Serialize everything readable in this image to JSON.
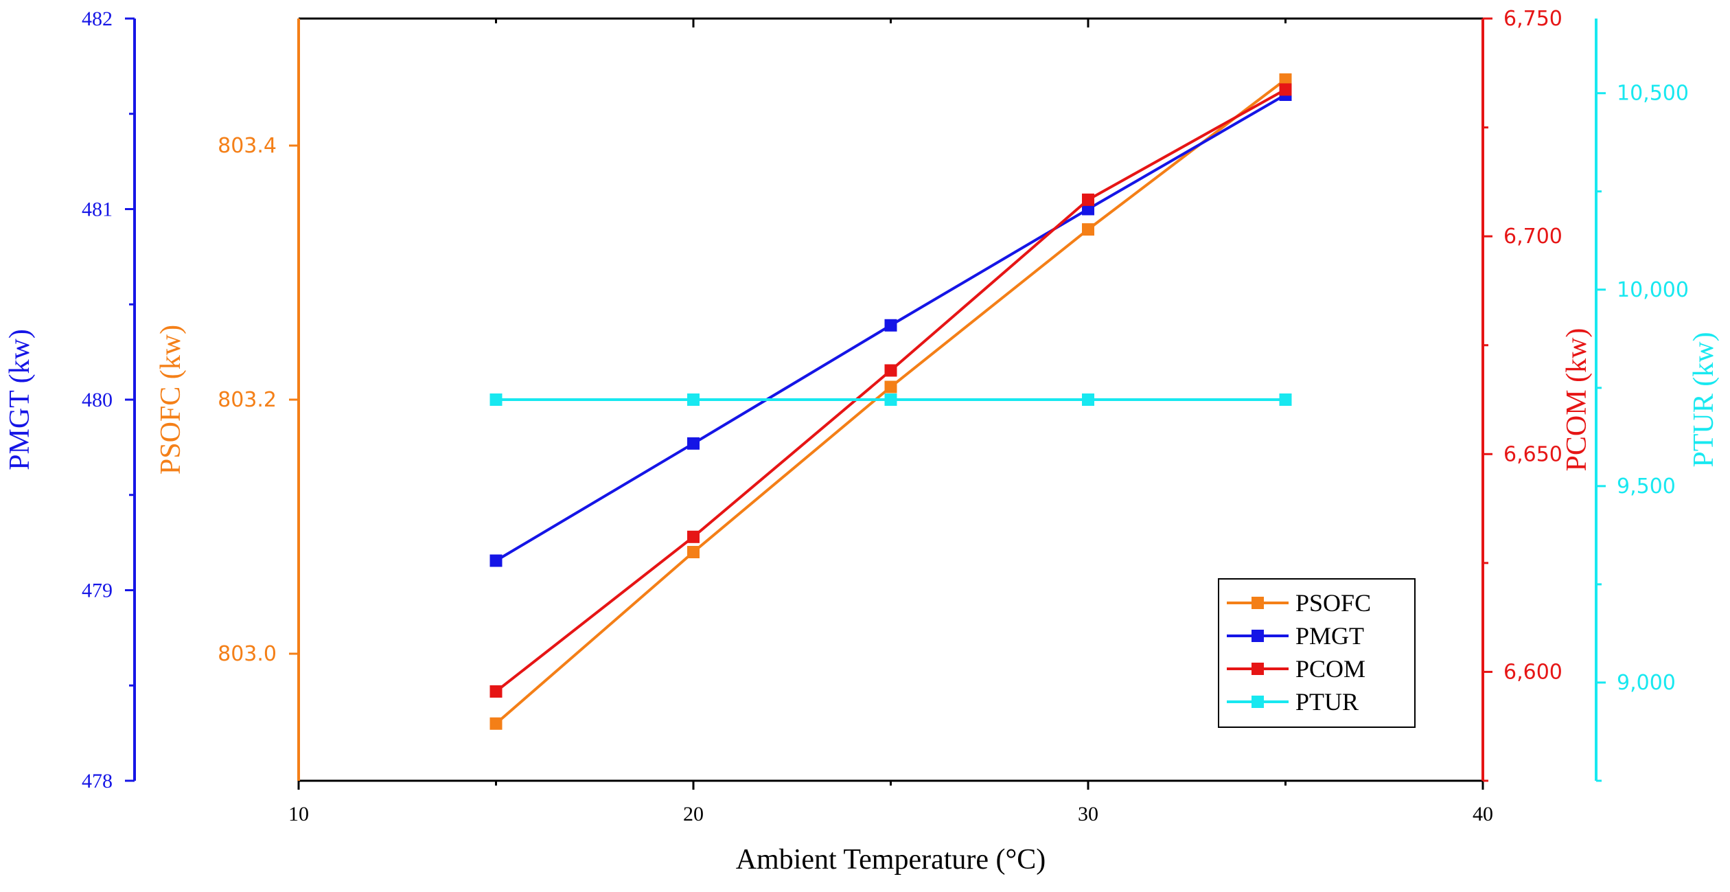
{
  "chart_data": {
    "type": "line",
    "xlabel": "Ambient Temperature (°C)",
    "xlim": [
      10,
      40
    ],
    "x_ticks": [
      10,
      20,
      30,
      40
    ],
    "x_tick_labels": [
      "10",
      "20",
      "30",
      "40"
    ],
    "x": [
      15,
      20,
      25,
      30,
      35
    ],
    "axes": {
      "pmgt": {
        "label": "PMGT (kw)",
        "color": "#1515e6",
        "ylim": [
          478,
          482
        ],
        "ticks": [
          478,
          479,
          480,
          481,
          482
        ],
        "tick_labels": [
          "478",
          "479",
          "480",
          "481",
          "482"
        ]
      },
      "psofc": {
        "label": "PSOFC (kw)",
        "color": "#f47f17",
        "ylim": [
          802.9,
          803.5
        ],
        "ticks": [
          803.0,
          803.2,
          803.4
        ],
        "tick_labels": [
          "803.0",
          "803.2",
          "803.4"
        ]
      },
      "pcom": {
        "label": "PCOM (kw)",
        "color": "#e61515",
        "ylim": [
          6575,
          6750
        ],
        "ticks": [
          6600,
          6650,
          6700,
          6750
        ],
        "tick_labels": [
          "6,600",
          "6,650",
          "6,700",
          "6,750"
        ]
      },
      "ptur": {
        "label": "PTUR (kw)",
        "color": "#18e8f0",
        "ylim": [
          8750,
          10690
        ],
        "ticks": [
          9000,
          9500,
          10000,
          10500
        ],
        "tick_labels": [
          "9,000",
          "9,500",
          "10,000",
          "10,500"
        ]
      }
    },
    "series": [
      {
        "name": "PSOFC",
        "axis": "psofc",
        "color": "#f47f17",
        "values": [
          802.945,
          803.08,
          803.21,
          803.334,
          803.452
        ]
      },
      {
        "name": "PMGT",
        "axis": "pmgt",
        "color": "#1515e6",
        "values": [
          479.155,
          479.77,
          480.39,
          481.0,
          481.6
        ]
      },
      {
        "name": "PCOM",
        "axis": "pcom",
        "color": "#e61515",
        "values": [
          6595.5,
          6631.0,
          6669.2,
          6708.4,
          6733.7
        ]
      },
      {
        "name": "PTUR",
        "axis": "ptur",
        "color": "#18e8f0",
        "values": [
          9720,
          9720,
          9720,
          9720,
          9720
        ]
      }
    ],
    "legend": [
      "PSOFC",
      "PMGT",
      "PCOM",
      "PTUR"
    ],
    "legend_position": "bottom-right"
  }
}
